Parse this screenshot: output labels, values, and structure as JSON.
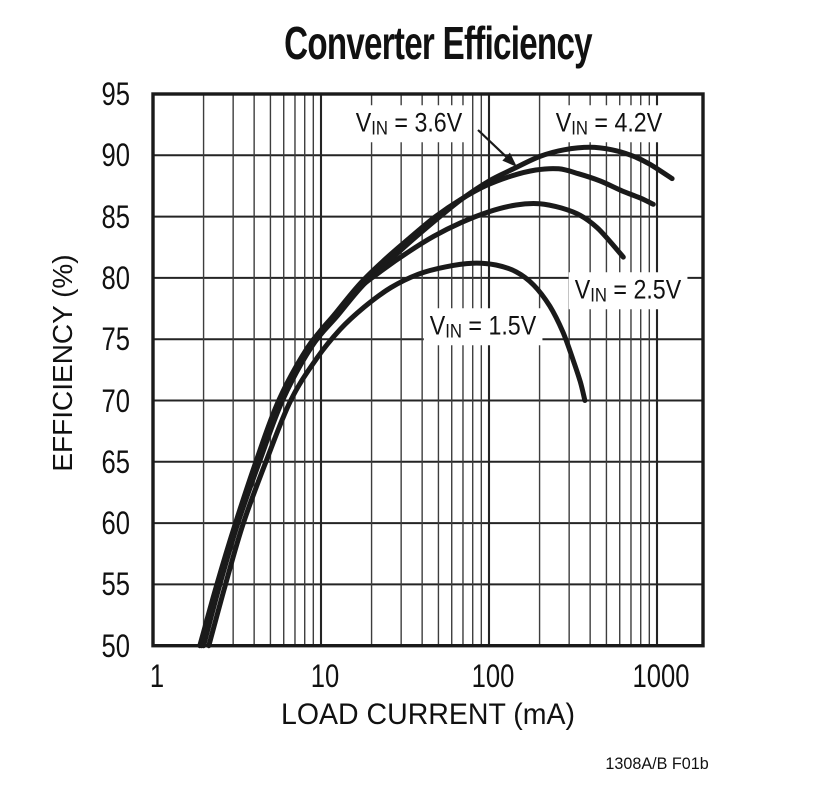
{
  "title": "Converter Efficiency",
  "footer": "1308A/B F01b",
  "colors": {
    "curve": "#1a1a1a",
    "grid_minor": "#3d3d3d",
    "grid_major": "#242424",
    "frame": "#1a1a1a",
    "background": "#ffffff"
  },
  "chart_data": {
    "type": "line",
    "title": "Converter Efficiency",
    "xlabel": "LOAD CURRENT (mA)",
    "ylabel": "EFFICIENCY (%)",
    "x_scale": "log",
    "xlim": [
      1,
      1900
    ],
    "ylim": [
      50,
      95
    ],
    "x_ticks": [
      1,
      10,
      100,
      1000
    ],
    "x_tick_labels": [
      "1",
      "10",
      "100",
      "1000"
    ],
    "y_ticks": [
      95,
      90,
      85,
      80,
      75,
      70,
      65,
      60,
      55,
      50
    ],
    "grid": "log minor grid on, 5% horizontal steps",
    "legend_position": "inline curve labels",
    "series": [
      {
        "name": "VIN = 3.6V",
        "label_prefix": "V",
        "label_sub": "IN",
        "label_suffix": " = 3.6V",
        "units": {
          "x": "mA",
          "y": "%"
        },
        "points": [
          [
            1.95,
            50
          ],
          [
            2.45,
            55
          ],
          [
            3.15,
            60
          ],
          [
            4.2,
            65
          ],
          [
            5.8,
            70
          ],
          [
            8.6,
            74.5
          ],
          [
            12,
            77
          ],
          [
            17,
            79.5
          ],
          [
            24,
            81.5
          ],
          [
            34,
            83.3
          ],
          [
            48,
            85
          ],
          [
            68,
            86.4
          ],
          [
            95,
            87.5
          ],
          [
            135,
            88.3
          ],
          [
            190,
            88.8
          ],
          [
            260,
            88.9
          ],
          [
            340,
            88.5
          ],
          [
            460,
            87.9
          ],
          [
            620,
            87.1
          ],
          [
            800,
            86.5
          ],
          [
            950,
            86
          ]
        ]
      },
      {
        "name": "VIN = 4.2V",
        "label_prefix": "V",
        "label_sub": "IN",
        "label_suffix": " = 4.2V",
        "units": {
          "x": "mA",
          "y": "%"
        },
        "points": [
          [
            2.0,
            50
          ],
          [
            2.5,
            55
          ],
          [
            3.2,
            60
          ],
          [
            4.3,
            65
          ],
          [
            5.9,
            70
          ],
          [
            8.8,
            74.4
          ],
          [
            12.5,
            76.9
          ],
          [
            17.5,
            79.3
          ],
          [
            25,
            81.3
          ],
          [
            35,
            83.1
          ],
          [
            50,
            84.9
          ],
          [
            70,
            86.5
          ],
          [
            100,
            87.9
          ],
          [
            140,
            88.9
          ],
          [
            200,
            89.9
          ],
          [
            280,
            90.45
          ],
          [
            400,
            90.65
          ],
          [
            540,
            90.45
          ],
          [
            700,
            90
          ],
          [
            900,
            89.3
          ],
          [
            1230,
            88.1
          ]
        ]
      },
      {
        "name": "VIN = 2.5V",
        "label_prefix": "V",
        "label_sub": "IN",
        "label_suffix": " = 2.5V",
        "units": {
          "x": "mA",
          "y": "%"
        },
        "points": [
          [
            1.9,
            50
          ],
          [
            2.4,
            55
          ],
          [
            3.1,
            60
          ],
          [
            4.1,
            65
          ],
          [
            5.6,
            70
          ],
          [
            8.3,
            74.3
          ],
          [
            11.5,
            76.6
          ],
          [
            16,
            78.9
          ],
          [
            23,
            80.6
          ],
          [
            33,
            82.1
          ],
          [
            47,
            83.4
          ],
          [
            68,
            84.5
          ],
          [
            100,
            85.4
          ],
          [
            145,
            85.95
          ],
          [
            200,
            86.05
          ],
          [
            270,
            85.7
          ],
          [
            350,
            85.1
          ],
          [
            440,
            84.1
          ],
          [
            530,
            82.9
          ],
          [
            630,
            81.7
          ]
        ]
      },
      {
        "name": "VIN = 1.5V",
        "label_prefix": "V",
        "label_sub": "IN",
        "label_suffix": " = 1.5V",
        "units": {
          "x": "mA",
          "y": "%"
        },
        "points": [
          [
            2.15,
            50
          ],
          [
            2.7,
            55
          ],
          [
            3.45,
            60
          ],
          [
            4.7,
            65
          ],
          [
            6.6,
            70
          ],
          [
            9.5,
            73.5
          ],
          [
            13,
            75.8
          ],
          [
            18,
            77.6
          ],
          [
            26,
            79.2
          ],
          [
            38,
            80.3
          ],
          [
            55,
            80.9
          ],
          [
            80,
            81.2
          ],
          [
            110,
            81.05
          ],
          [
            145,
            80.5
          ],
          [
            185,
            79.4
          ],
          [
            230,
            77.7
          ],
          [
            275,
            75.6
          ],
          [
            315,
            73.4
          ],
          [
            350,
            71.5
          ],
          [
            372,
            70
          ]
        ]
      }
    ]
  }
}
